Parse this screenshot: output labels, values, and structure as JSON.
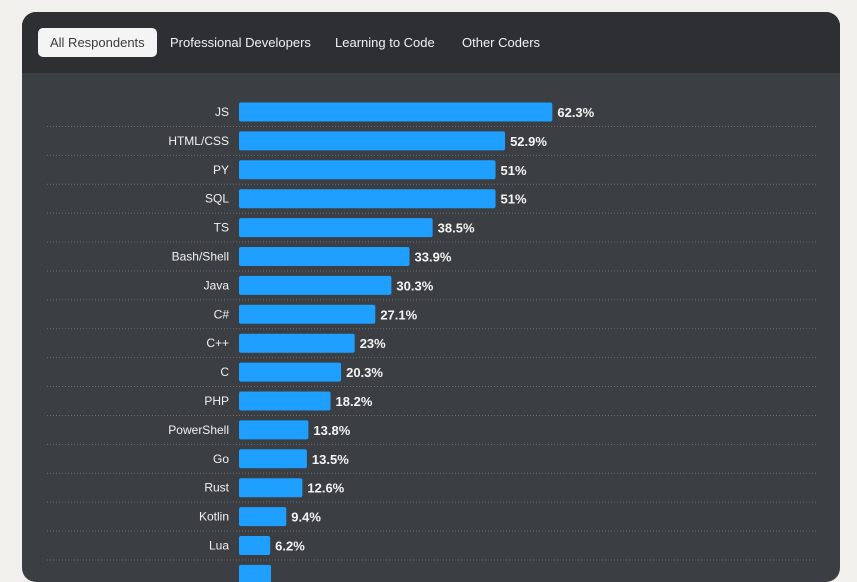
{
  "tabs": [
    {
      "label": "All Respondents",
      "active": true
    },
    {
      "label": "Professional Developers",
      "active": false
    },
    {
      "label": "Learning to Code",
      "active": false
    },
    {
      "label": "Other Coders",
      "active": false
    }
  ],
  "colors": {
    "bar": "#1f9fff",
    "panel": "#3b3e42",
    "tabbar": "#2d2f33"
  },
  "chart_data": {
    "type": "bar",
    "orientation": "horizontal",
    "value_suffix": "%",
    "categories": [
      "JS",
      "HTML/CSS",
      "PY",
      "SQL",
      "TS",
      "Bash/Shell",
      "Java",
      "C#",
      "C++",
      "C",
      "PHP",
      "PowerShell",
      "Go",
      "Rust",
      "Kotlin",
      "Lua"
    ],
    "values": [
      62.3,
      52.9,
      51,
      51,
      38.5,
      33.9,
      30.3,
      27.1,
      23,
      20.3,
      18.2,
      13.8,
      13.5,
      12.6,
      9.4,
      6.2
    ],
    "value_labels": [
      "62.3%",
      "52.9%",
      "51%",
      "51%",
      "38.5%",
      "33.9%",
      "30.3%",
      "27.1%",
      "23%",
      "20.3%",
      "18.2%",
      "13.8%",
      "13.5%",
      "12.6%",
      "9.4%",
      "6.2%"
    ],
    "title": "",
    "xlabel": "",
    "ylabel": "",
    "grid": true
  }
}
